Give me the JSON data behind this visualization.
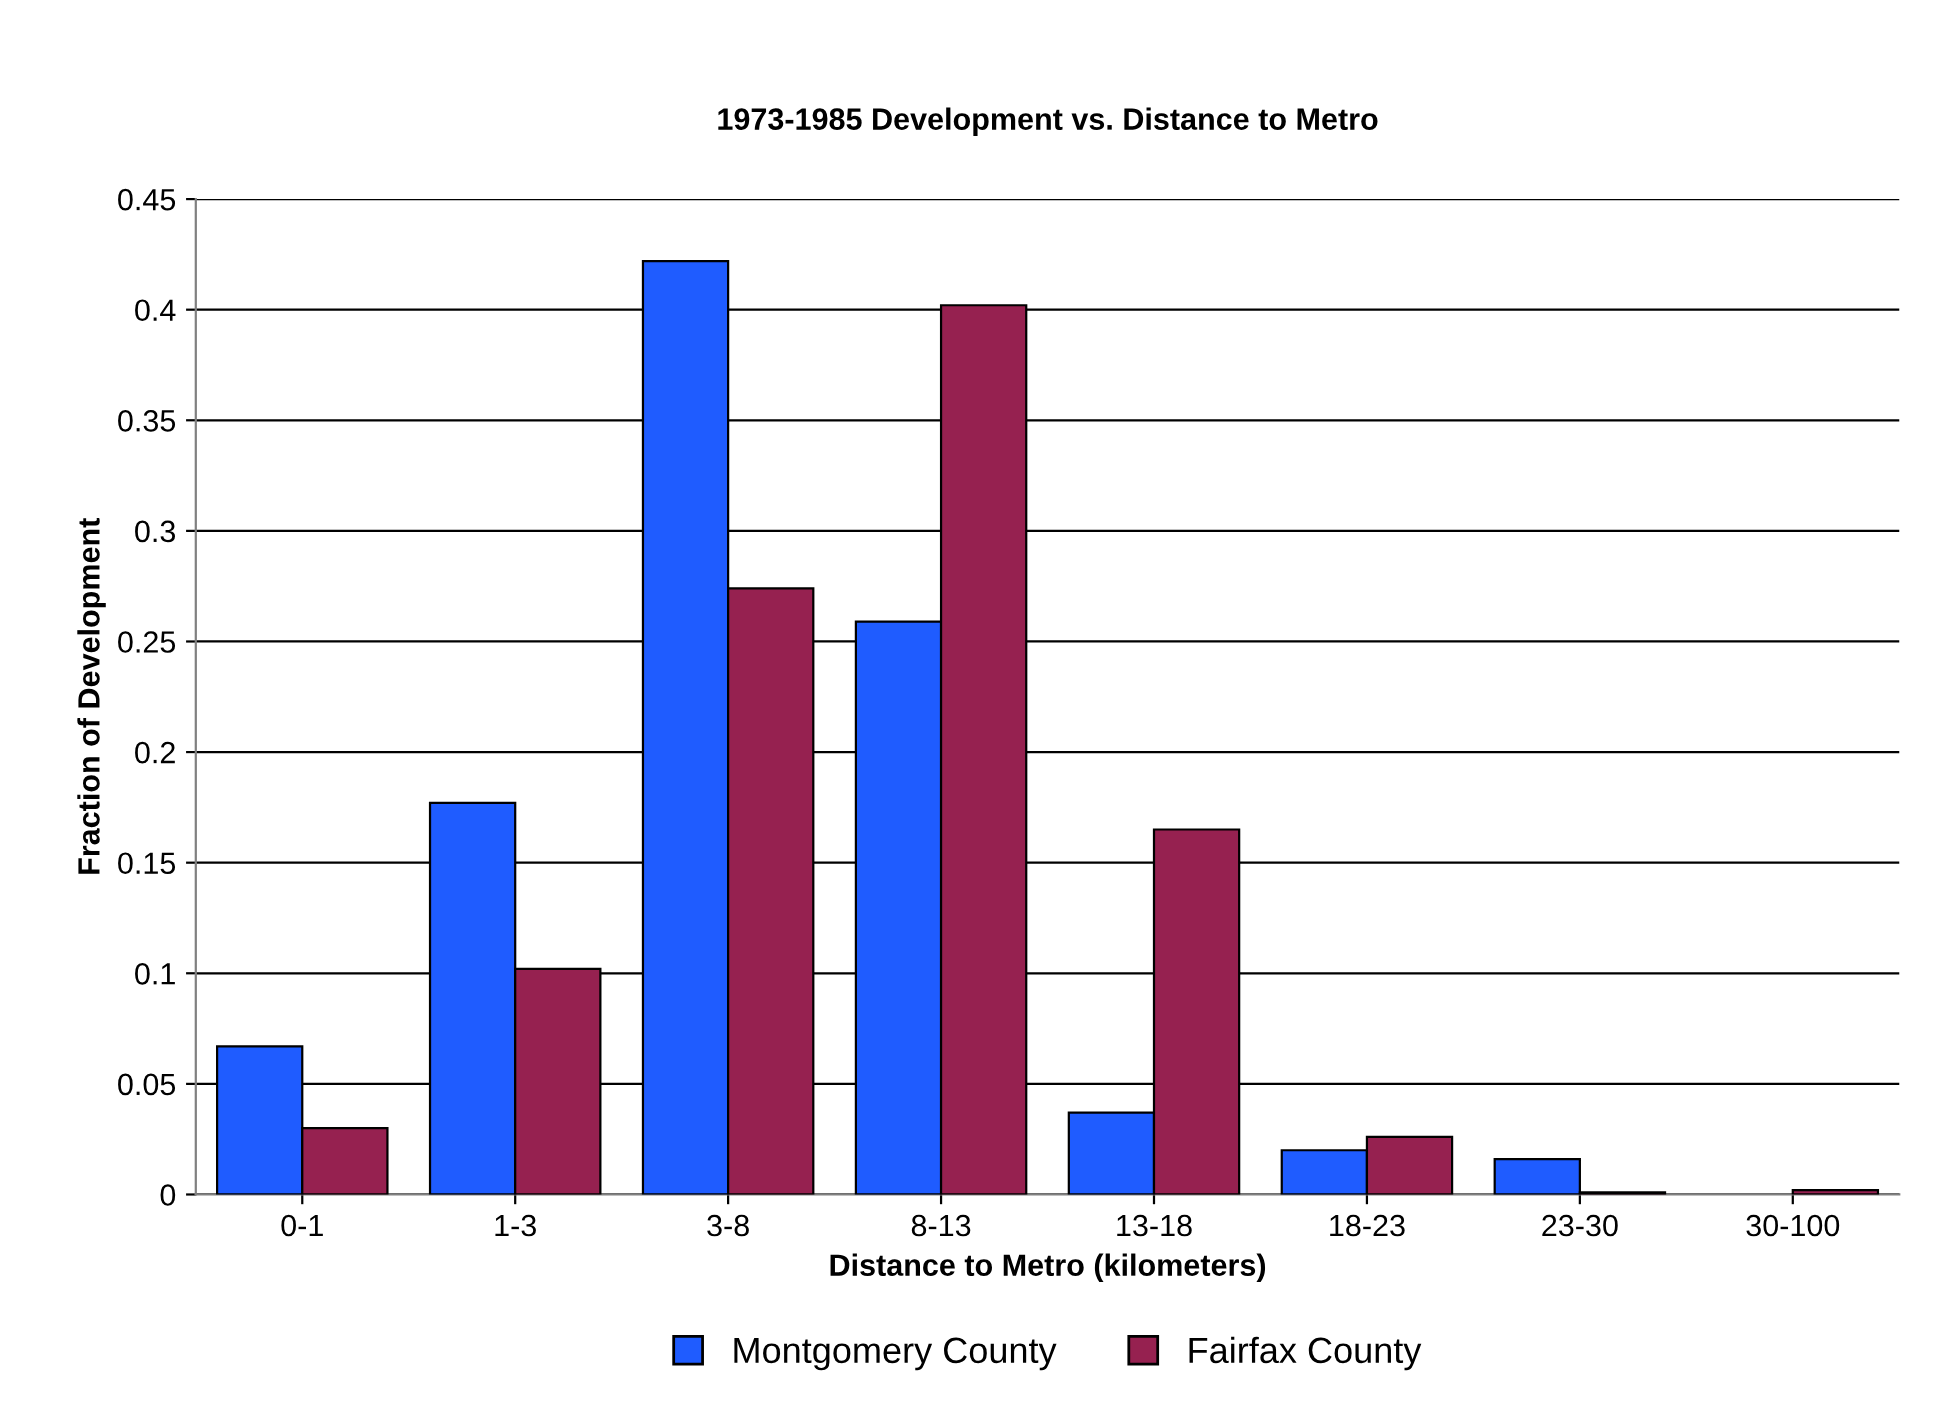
{
  "chart_data": {
    "type": "bar",
    "title": "1973-1985 Development vs. Distance to Metro",
    "xlabel": "Distance to Metro (kilometers)",
    "ylabel": "Fraction of Development",
    "categories": [
      "0-1",
      "1-3",
      "3-8",
      "8-13",
      "13-18",
      "18-23",
      "23-30",
      "30-100"
    ],
    "series": [
      {
        "name": "Montgomery County",
        "color": "#1f5cff",
        "values": [
          0.067,
          0.177,
          0.422,
          0.259,
          0.037,
          0.02,
          0.016,
          null
        ]
      },
      {
        "name": "Fairfax County",
        "color": "#962150",
        "values": [
          0.03,
          0.102,
          0.274,
          0.402,
          0.165,
          0.026,
          0.001,
          0.002
        ]
      }
    ],
    "ylim": [
      0,
      0.45
    ],
    "yticks": [
      0,
      {
        "value": 0.05,
        "label": "0.05"
      },
      {
        "value": 0.1,
        "label": "0.1"
      },
      {
        "value": 0.15,
        "label": "0.15"
      },
      {
        "value": 0.2,
        "label": "0.2"
      },
      {
        "value": 0.25,
        "label": "0.25"
      },
      {
        "value": 0.3,
        "label": "0.3"
      },
      {
        "value": 0.35,
        "label": "0.35"
      },
      {
        "value": 0.4,
        "label": "0.4"
      },
      {
        "value": 0.45,
        "label": "0.45"
      }
    ],
    "grid": "y",
    "legend": "bottom"
  }
}
